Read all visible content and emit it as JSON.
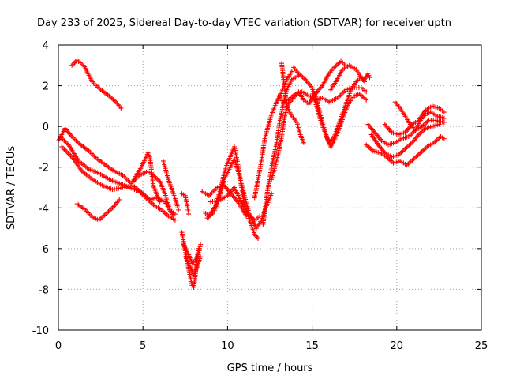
{
  "chart_data": {
    "type": "scatter",
    "title": "Day 233 of 2025, Sidereal Day-to-day VTEC variation (SDTVAR) for receiver uptn",
    "xlabel": "GPS time / hours",
    "ylabel": "SDTVAR / TECUs",
    "xlim": [
      0,
      25
    ],
    "ylim": [
      -10,
      4
    ],
    "xticks": [
      0,
      5,
      10,
      15,
      20,
      25
    ],
    "yticks": [
      -10,
      -8,
      -6,
      -4,
      -2,
      0,
      2,
      4
    ],
    "grid": true,
    "marker": "+",
    "color": "#ff0000",
    "series": [
      {
        "points": [
          [
            0.8,
            3.0
          ],
          [
            1.1,
            3.25
          ],
          [
            1.5,
            3.0
          ],
          [
            2.0,
            2.2
          ],
          [
            2.5,
            1.8
          ],
          [
            3.0,
            1.5
          ],
          [
            3.4,
            1.2
          ],
          [
            3.7,
            0.9
          ]
        ]
      },
      {
        "points": [
          [
            1.1,
            -3.8
          ],
          [
            1.6,
            -4.1
          ],
          [
            2.0,
            -4.45
          ],
          [
            2.4,
            -4.6
          ],
          [
            2.8,
            -4.3
          ],
          [
            3.2,
            -4.0
          ],
          [
            3.6,
            -3.6
          ]
        ]
      },
      {
        "points": [
          [
            0.0,
            -0.7
          ],
          [
            0.4,
            -0.1
          ],
          [
            0.8,
            -0.5
          ],
          [
            1.3,
            -0.9
          ],
          [
            1.8,
            -1.2
          ],
          [
            2.3,
            -1.6
          ],
          [
            2.8,
            -1.9
          ],
          [
            3.3,
            -2.2
          ],
          [
            3.8,
            -2.4
          ],
          [
            4.3,
            -2.8
          ],
          [
            4.8,
            -2.4
          ],
          [
            5.3,
            -2.2
          ],
          [
            5.6,
            -2.4
          ],
          [
            6.0,
            -2.7
          ],
          [
            6.3,
            -3.3
          ],
          [
            6.6,
            -4.1
          ],
          [
            6.9,
            -4.3
          ]
        ]
      },
      {
        "points": [
          [
            0.1,
            -0.5
          ],
          [
            0.6,
            -0.9
          ],
          [
            1.2,
            -1.7
          ],
          [
            1.8,
            -2.1
          ],
          [
            2.4,
            -2.3
          ],
          [
            3.0,
            -2.6
          ],
          [
            3.6,
            -2.8
          ],
          [
            4.2,
            -3.0
          ],
          [
            4.8,
            -3.2
          ],
          [
            5.3,
            -3.6
          ],
          [
            5.7,
            -3.9
          ],
          [
            6.1,
            -4.1
          ],
          [
            6.5,
            -4.4
          ],
          [
            6.9,
            -4.6
          ]
        ]
      },
      {
        "points": [
          [
            0.2,
            -1.0
          ],
          [
            0.8,
            -1.5
          ],
          [
            1.4,
            -2.2
          ],
          [
            2.0,
            -2.6
          ],
          [
            2.6,
            -2.9
          ],
          [
            3.2,
            -3.1
          ],
          [
            3.8,
            -3.0
          ],
          [
            4.4,
            -2.9
          ],
          [
            5.0,
            -3.3
          ],
          [
            5.4,
            -3.6
          ],
          [
            5.8,
            -3.5
          ],
          [
            6.3,
            -3.7
          ],
          [
            6.8,
            -4.4
          ]
        ]
      },
      {
        "points": [
          [
            4.4,
            -2.7
          ],
          [
            4.9,
            -2.0
          ],
          [
            5.3,
            -1.3
          ],
          [
            5.4,
            -1.5
          ],
          [
            5.5,
            -2.1
          ],
          [
            5.6,
            -2.9
          ],
          [
            5.8,
            -3.3
          ],
          [
            6.0,
            -3.7
          ]
        ]
      },
      {
        "points": [
          [
            6.2,
            -1.7
          ],
          [
            6.5,
            -2.6
          ],
          [
            6.8,
            -3.3
          ],
          [
            7.0,
            -3.8
          ],
          [
            7.1,
            -4.1
          ]
        ]
      },
      {
        "points": [
          [
            7.3,
            -3.3
          ],
          [
            7.5,
            -3.4
          ],
          [
            7.6,
            -3.8
          ],
          [
            7.7,
            -4.3
          ]
        ]
      },
      {
        "points": [
          [
            7.3,
            -5.2
          ],
          [
            7.5,
            -6.1
          ],
          [
            7.7,
            -7.0
          ],
          [
            7.9,
            -7.8
          ],
          [
            8.0,
            -7.9
          ],
          [
            8.1,
            -7.3
          ],
          [
            8.2,
            -6.4
          ],
          [
            8.3,
            -6.0
          ]
        ]
      },
      {
        "points": [
          [
            7.4,
            -5.8
          ],
          [
            7.7,
            -6.3
          ],
          [
            7.9,
            -6.7
          ],
          [
            8.1,
            -6.6
          ],
          [
            8.3,
            -6.2
          ],
          [
            8.4,
            -5.8
          ]
        ]
      },
      {
        "points": [
          [
            7.5,
            -6.4
          ],
          [
            7.8,
            -6.9
          ],
          [
            8.0,
            -7.3
          ],
          [
            8.2,
            -6.9
          ],
          [
            8.4,
            -6.4
          ]
        ]
      },
      {
        "points": [
          [
            8.5,
            -3.2
          ],
          [
            8.9,
            -3.4
          ],
          [
            9.4,
            -3.0
          ],
          [
            9.8,
            -2.9
          ],
          [
            10.2,
            -3.3
          ],
          [
            10.6,
            -3.7
          ],
          [
            10.9,
            -4.1
          ],
          [
            11.1,
            -4.4
          ]
        ]
      },
      {
        "points": [
          [
            8.6,
            -4.2
          ],
          [
            8.9,
            -4.4
          ],
          [
            9.3,
            -3.9
          ],
          [
            9.6,
            -3.0
          ],
          [
            9.9,
            -2.0
          ],
          [
            10.2,
            -1.4
          ],
          [
            10.4,
            -1.0
          ],
          [
            10.6,
            -1.8
          ],
          [
            10.8,
            -2.9
          ],
          [
            11.0,
            -3.9
          ],
          [
            11.3,
            -4.6
          ],
          [
            11.6,
            -5.3
          ],
          [
            11.8,
            -5.5
          ]
        ]
      },
      {
        "points": [
          [
            8.8,
            -4.5
          ],
          [
            9.2,
            -4.2
          ],
          [
            9.5,
            -3.5
          ],
          [
            9.8,
            -2.6
          ],
          [
            10.1,
            -2.1
          ],
          [
            10.4,
            -1.6
          ],
          [
            10.7,
            -2.4
          ],
          [
            11.0,
            -3.4
          ],
          [
            11.3,
            -4.3
          ],
          [
            11.7,
            -5.0
          ],
          [
            12.0,
            -4.6
          ],
          [
            12.3,
            -3.9
          ],
          [
            12.6,
            -3.3
          ]
        ]
      },
      {
        "points": [
          [
            9.0,
            -3.7
          ],
          [
            9.6,
            -3.6
          ],
          [
            10.0,
            -3.4
          ],
          [
            10.4,
            -3.0
          ],
          [
            10.8,
            -3.7
          ],
          [
            11.2,
            -4.3
          ],
          [
            11.6,
            -4.6
          ],
          [
            11.9,
            -4.4
          ]
        ]
      },
      {
        "points": [
          [
            11.6,
            -3.5
          ],
          [
            11.8,
            -2.6
          ],
          [
            12.0,
            -1.7
          ],
          [
            12.2,
            -0.6
          ],
          [
            12.4,
            0.0
          ],
          [
            12.6,
            0.6
          ],
          [
            12.9,
            1.2
          ],
          [
            13.2,
            1.7
          ],
          [
            13.5,
            2.3
          ],
          [
            13.8,
            2.7
          ]
        ]
      },
      {
        "points": [
          [
            12.1,
            -4.8
          ],
          [
            12.3,
            -3.5
          ],
          [
            12.6,
            -2.0
          ],
          [
            12.9,
            -0.8
          ],
          [
            13.1,
            0.3
          ],
          [
            13.3,
            1.1
          ],
          [
            13.5,
            1.8
          ],
          [
            13.8,
            2.3
          ],
          [
            14.2,
            2.5
          ]
        ]
      },
      {
        "points": [
          [
            12.6,
            -2.6
          ],
          [
            12.9,
            -1.7
          ],
          [
            13.2,
            -0.5
          ],
          [
            13.4,
            0.6
          ],
          [
            13.6,
            1.1
          ],
          [
            13.9,
            1.4
          ],
          [
            14.2,
            1.7
          ],
          [
            14.5,
            1.3
          ],
          [
            14.8,
            1.1
          ],
          [
            15.2,
            1.6
          ],
          [
            15.6,
            2.0
          ],
          [
            16.0,
            2.6
          ],
          [
            16.3,
            2.9
          ],
          [
            16.7,
            3.2
          ],
          [
            17.0,
            3.0
          ]
        ]
      },
      {
        "points": [
          [
            13.2,
            3.1
          ],
          [
            13.3,
            2.4
          ],
          [
            13.4,
            1.7
          ],
          [
            13.5,
            1.0
          ],
          [
            13.8,
            0.5
          ],
          [
            14.1,
            0.2
          ],
          [
            14.3,
            -0.4
          ],
          [
            14.5,
            -0.8
          ]
        ]
      },
      {
        "points": [
          [
            13.0,
            1.5
          ],
          [
            13.3,
            1.2
          ],
          [
            13.6,
            1.3
          ],
          [
            14.0,
            1.6
          ],
          [
            14.4,
            1.7
          ],
          [
            14.8,
            1.5
          ],
          [
            15.2,
            1.3
          ],
          [
            15.6,
            1.4
          ],
          [
            16.0,
            1.2
          ],
          [
            16.5,
            1.4
          ],
          [
            17.0,
            1.8
          ],
          [
            17.5,
            1.9
          ],
          [
            17.9,
            1.9
          ],
          [
            18.2,
            1.7
          ]
        ]
      },
      {
        "points": [
          [
            13.9,
            2.9
          ],
          [
            14.2,
            2.6
          ],
          [
            14.6,
            2.3
          ],
          [
            15.0,
            1.9
          ],
          [
            15.3,
            1.2
          ],
          [
            15.6,
            0.2
          ],
          [
            15.9,
            -0.6
          ],
          [
            16.1,
            -1.0
          ],
          [
            16.3,
            -0.7
          ],
          [
            16.6,
            -0.1
          ],
          [
            16.9,
            0.6
          ],
          [
            17.2,
            1.2
          ],
          [
            17.5,
            1.5
          ],
          [
            17.8,
            1.6
          ],
          [
            18.2,
            1.3
          ]
        ]
      },
      {
        "points": [
          [
            15.0,
            1.6
          ],
          [
            15.3,
            0.9
          ],
          [
            15.5,
            0.3
          ],
          [
            15.8,
            -0.4
          ],
          [
            16.0,
            -0.8
          ],
          [
            16.3,
            -0.5
          ],
          [
            16.7,
            0.4
          ],
          [
            17.0,
            1.1
          ],
          [
            17.3,
            1.8
          ],
          [
            17.6,
            2.2
          ],
          [
            17.9,
            2.4
          ],
          [
            18.1,
            2.2
          ]
        ]
      },
      {
        "points": [
          [
            16.1,
            1.8
          ],
          [
            16.4,
            2.2
          ],
          [
            16.8,
            2.8
          ],
          [
            17.2,
            3.0
          ],
          [
            17.6,
            2.8
          ],
          [
            17.9,
            2.4
          ],
          [
            18.1,
            2.3
          ],
          [
            18.3,
            2.6
          ],
          [
            18.4,
            2.4
          ]
        ]
      },
      {
        "points": [
          [
            18.2,
            -0.9
          ],
          [
            18.6,
            -1.2
          ],
          [
            19.0,
            -1.3
          ],
          [
            19.4,
            -1.5
          ],
          [
            19.8,
            -1.8
          ],
          [
            20.2,
            -1.7
          ],
          [
            20.6,
            -1.9
          ],
          [
            21.0,
            -1.6
          ],
          [
            21.4,
            -1.3
          ],
          [
            21.8,
            -1.0
          ],
          [
            22.2,
            -0.8
          ],
          [
            22.6,
            -0.5
          ],
          [
            22.8,
            -0.6
          ]
        ]
      },
      {
        "points": [
          [
            18.3,
            0.1
          ],
          [
            18.7,
            -0.3
          ],
          [
            19.1,
            -0.7
          ],
          [
            19.5,
            -0.9
          ],
          [
            19.9,
            -0.8
          ],
          [
            20.3,
            -0.6
          ],
          [
            20.7,
            -0.5
          ],
          [
            21.1,
            -0.2
          ],
          [
            21.5,
            0.0
          ],
          [
            21.9,
            0.3
          ],
          [
            22.3,
            0.3
          ],
          [
            22.8,
            0.2
          ]
        ]
      },
      {
        "points": [
          [
            18.5,
            -0.4
          ],
          [
            18.9,
            -0.9
          ],
          [
            19.3,
            -1.3
          ],
          [
            19.7,
            -1.5
          ],
          [
            20.1,
            -1.4
          ],
          [
            20.5,
            -1.1
          ],
          [
            20.9,
            -0.8
          ],
          [
            21.3,
            -0.4
          ],
          [
            21.7,
            -0.1
          ],
          [
            22.1,
            0.0
          ],
          [
            22.5,
            0.1
          ]
        ]
      },
      {
        "points": [
          [
            19.3,
            0.1
          ],
          [
            19.7,
            -0.3
          ],
          [
            20.1,
            -0.4
          ],
          [
            20.5,
            -0.3
          ],
          [
            20.9,
            0.1
          ],
          [
            21.3,
            0.3
          ],
          [
            21.7,
            0.8
          ],
          [
            22.1,
            1.0
          ],
          [
            22.5,
            0.9
          ],
          [
            22.8,
            0.7
          ]
        ]
      },
      {
        "points": [
          [
            19.9,
            1.2
          ],
          [
            20.2,
            0.9
          ],
          [
            20.5,
            0.5
          ],
          [
            20.8,
            0.1
          ],
          [
            21.1,
            -0.2
          ],
          [
            21.4,
            0.3
          ],
          [
            21.7,
            0.6
          ],
          [
            22.0,
            0.7
          ],
          [
            22.4,
            0.5
          ],
          [
            22.8,
            0.4
          ]
        ]
      }
    ]
  }
}
